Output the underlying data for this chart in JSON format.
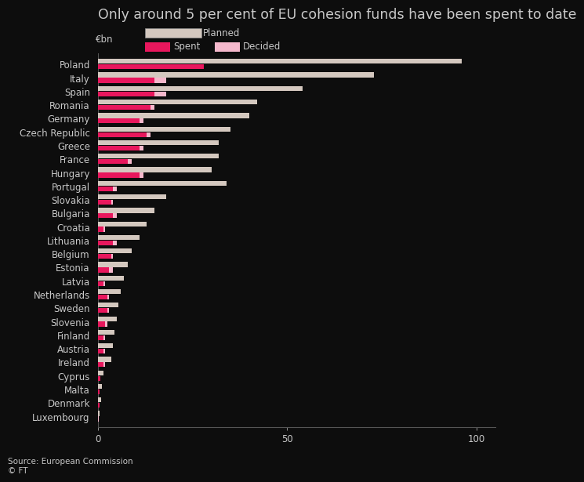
{
  "title": "Only around 5 per cent of EU cohesion funds have been spent to date",
  "unit_label": "€bn",
  "source_line1": "Source: European Commission",
  "source_line2": "© FT",
  "countries": [
    "Poland",
    "Italy",
    "Spain",
    "Romania",
    "Germany",
    "Czech Republic",
    "Greece",
    "France",
    "Hungary",
    "Portugal",
    "Slovakia",
    "Bulgaria",
    "Croatia",
    "Lithuania",
    "Belgium",
    "Estonia",
    "Latvia",
    "Netherlands",
    "Sweden",
    "Slovenia",
    "Finland",
    "Austria",
    "Ireland",
    "Cyprus",
    "Malta",
    "Denmark",
    "Luxembourg"
  ],
  "planned": [
    96,
    73,
    54,
    42,
    40,
    35,
    32,
    32,
    30,
    34,
    18,
    15,
    13,
    11,
    9,
    8,
    7,
    6,
    5.5,
    5,
    4.5,
    4,
    3.5,
    1.5,
    1.2,
    1.0,
    0.5
  ],
  "decided": [
    28,
    18,
    18,
    15,
    12,
    14,
    12,
    9,
    12,
    5,
    4,
    5,
    2,
    5,
    4,
    4,
    2,
    3,
    3,
    2.5,
    2,
    2,
    2,
    0.8,
    0.6,
    0.5,
    0.2
  ],
  "spent": [
    28,
    15,
    15,
    14,
    11,
    13,
    11,
    8,
    11,
    4,
    3.5,
    4,
    1.5,
    4,
    3.5,
    3,
    1.5,
    2.5,
    2.5,
    2,
    1.5,
    1.5,
    1.5,
    0.7,
    0.5,
    0.4,
    0.1
  ],
  "color_planned": "#d4c8bf",
  "color_decided": "#f5b8cc",
  "color_spent": "#e8175d",
  "bg_color": "#0d0d0d",
  "text_color": "#c8c8c8",
  "bar_height": 0.36,
  "bar_gap": 0.04,
  "xlim": [
    0,
    105
  ],
  "xticks": [
    0,
    50,
    100
  ],
  "title_fontsize": 12.5,
  "label_fontsize": 8.5,
  "tick_fontsize": 8.5
}
